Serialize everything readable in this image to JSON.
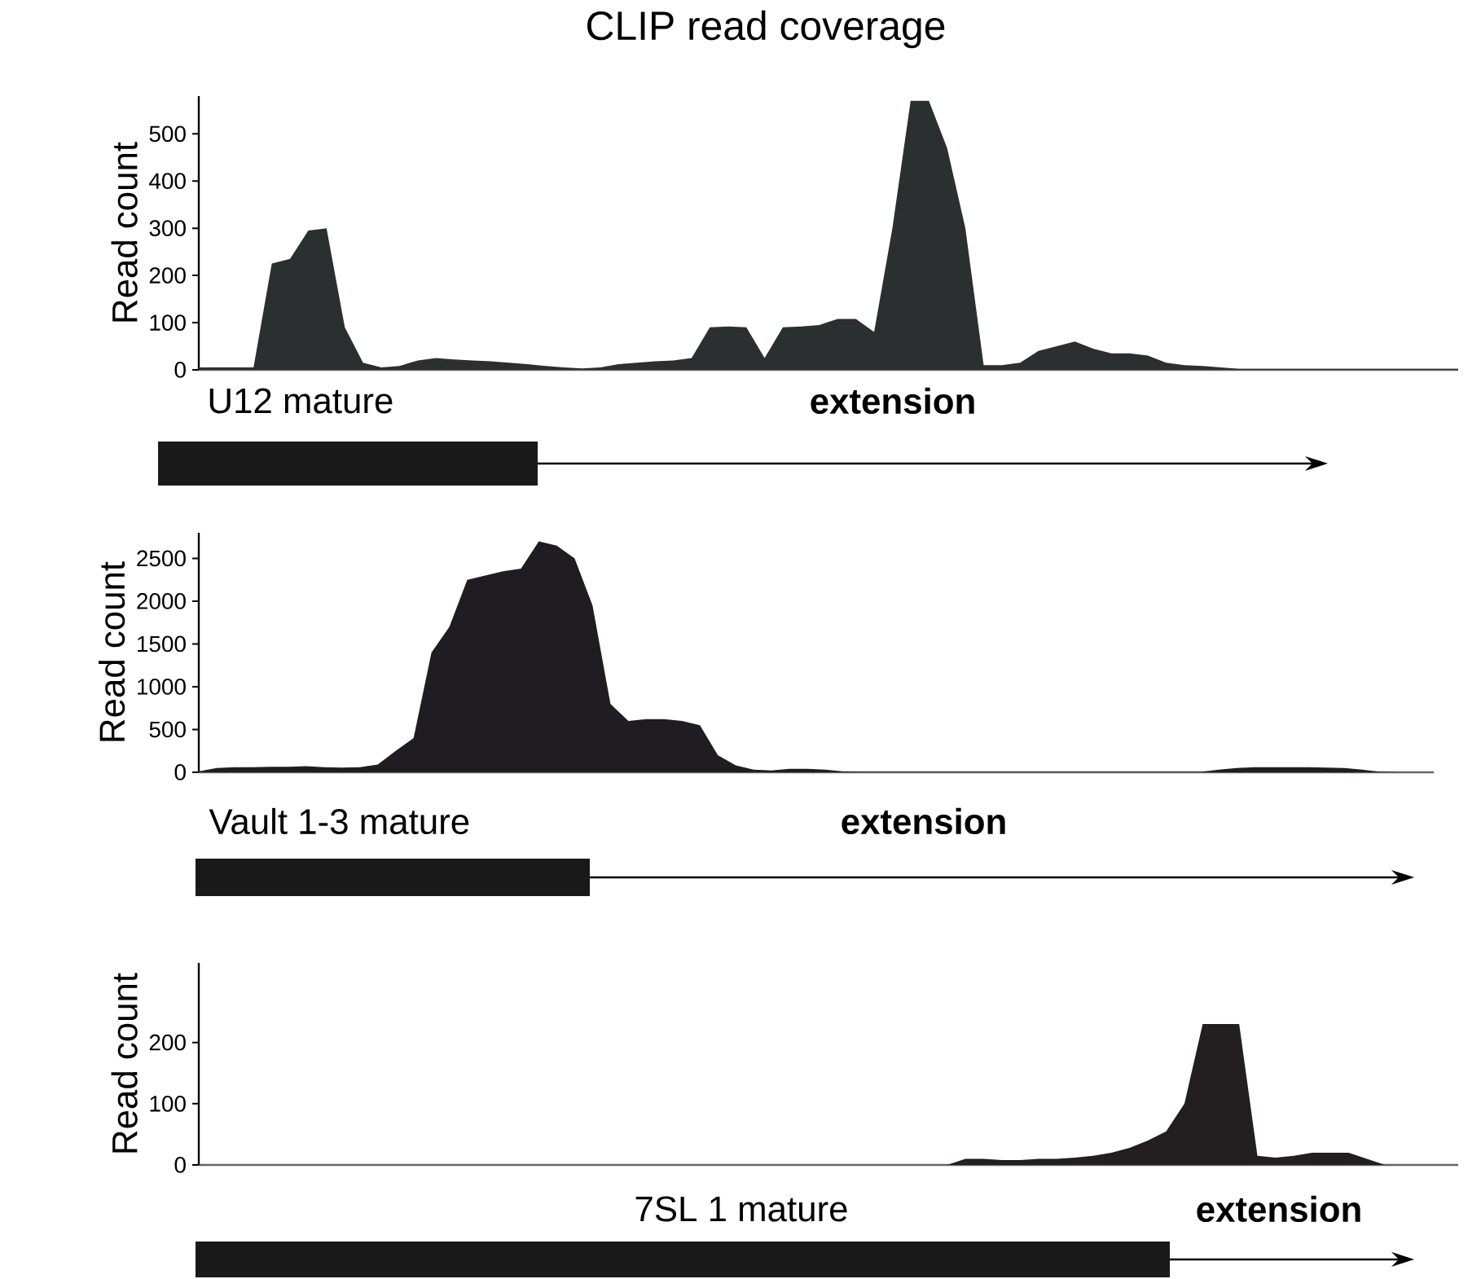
{
  "chart_data": [
    {
      "type": "area",
      "title": "CLIP read coverage",
      "ylabel": "Read count",
      "color": "#2b2f30",
      "tick_labels": "y",
      "categories": [
        null,
        null,
        null,
        null,
        null,
        null,
        null,
        null,
        null,
        null,
        null,
        null,
        null,
        null,
        null,
        null,
        null,
        null,
        null,
        null,
        null,
        null,
        null,
        null,
        null,
        null,
        null,
        null,
        null,
        null,
        null,
        null,
        null,
        null,
        null,
        null,
        null,
        null,
        null,
        null,
        null,
        null,
        null,
        null,
        null,
        null,
        null,
        null,
        null,
        null,
        null,
        null,
        null,
        null,
        null,
        null,
        null,
        null,
        null,
        null,
        null,
        null,
        null,
        null,
        null,
        null,
        null,
        null,
        null,
        null
      ],
      "values": [
        5,
        5,
        5,
        5,
        225,
        235,
        295,
        300,
        90,
        15,
        5,
        8,
        20,
        25,
        22,
        20,
        18,
        15,
        12,
        8,
        5,
        3,
        5,
        12,
        15,
        18,
        20,
        25,
        90,
        92,
        90,
        25,
        90,
        92,
        95,
        108,
        108,
        80,
        300,
        570,
        570,
        470,
        300,
        10,
        10,
        15,
        40,
        50,
        60,
        45,
        35,
        35,
        30,
        15,
        10,
        8,
        5,
        2,
        2,
        2,
        2,
        2,
        2,
        2,
        2,
        2,
        2,
        2,
        2,
        2
      ],
      "ylim": [
        0,
        580
      ],
      "yticks": [
        0,
        100,
        200,
        300,
        400,
        500
      ],
      "annotations": [
        "U12 mature",
        "extension"
      ]
    },
    {
      "type": "area",
      "ylabel": "Read count",
      "color": "#1f1d21",
      "tick_labels": "y",
      "categories": [
        null,
        null,
        null,
        null,
        null,
        null,
        null,
        null,
        null,
        null,
        null,
        null,
        null,
        null,
        null,
        null,
        null,
        null,
        null,
        null,
        null,
        null,
        null,
        null,
        null,
        null,
        null,
        null,
        null,
        null,
        null,
        null,
        null,
        null,
        null,
        null,
        null,
        null,
        null,
        null,
        null,
        null,
        null,
        null,
        null,
        null,
        null,
        null,
        null,
        null,
        null,
        null,
        null,
        null,
        null,
        null,
        null,
        null,
        null,
        null,
        null,
        null,
        null,
        null,
        null,
        null,
        null,
        null,
        null,
        null
      ],
      "values": [
        10,
        50,
        60,
        60,
        65,
        65,
        70,
        60,
        55,
        60,
        90,
        250,
        400,
        1400,
        1700,
        2250,
        2300,
        2350,
        2380,
        2700,
        2650,
        2500,
        1950,
        800,
        600,
        620,
        620,
        600,
        550,
        200,
        80,
        30,
        20,
        40,
        40,
        30,
        10,
        5,
        5,
        5,
        5,
        5,
        5,
        5,
        5,
        5,
        5,
        5,
        5,
        5,
        5,
        5,
        5,
        5,
        5,
        5,
        5,
        30,
        50,
        60,
        60,
        60,
        60,
        55,
        50,
        30,
        5,
        0,
        0,
        0
      ],
      "ylim": [
        0,
        2800
      ],
      "yticks": [
        0,
        500,
        1000,
        1500,
        2000,
        2500
      ],
      "annotations": [
        "Vault 1-3 mature",
        "extension"
      ]
    },
    {
      "type": "area",
      "ylabel": "Read count",
      "color": "#231f20",
      "tick_labels": "y",
      "categories": [
        null,
        null,
        null,
        null,
        null,
        null,
        null,
        null,
        null,
        null,
        null,
        null,
        null,
        null,
        null,
        null,
        null,
        null,
        null,
        null,
        null,
        null,
        null,
        null,
        null,
        null,
        null,
        null,
        null,
        null,
        null,
        null,
        null,
        null,
        null,
        null,
        null,
        null,
        null,
        null,
        null,
        null,
        null,
        null,
        null,
        null,
        null,
        null,
        null,
        null,
        null,
        null,
        null,
        null,
        null,
        null,
        null,
        null,
        null,
        null,
        null,
        null,
        null,
        null,
        null,
        null,
        null,
        null,
        null,
        null
      ],
      "values": [
        0,
        0,
        0,
        0,
        0,
        0,
        0,
        0,
        0,
        0,
        0,
        0,
        0,
        0,
        0,
        0,
        0,
        0,
        0,
        0,
        0,
        0,
        0,
        0,
        0,
        0,
        0,
        0,
        0,
        0,
        0,
        0,
        0,
        0,
        0,
        0,
        0,
        0,
        0,
        0,
        0,
        0,
        10,
        10,
        8,
        8,
        10,
        10,
        12,
        15,
        20,
        28,
        40,
        55,
        100,
        230,
        230,
        230,
        15,
        12,
        15,
        20,
        20,
        20,
        10,
        0,
        0,
        0,
        0,
        0
      ],
      "ylim": [
        0,
        330
      ],
      "yticks": [
        0,
        100,
        200
      ],
      "annotations": [
        "7SL 1 mature",
        "extension"
      ]
    }
  ]
}
